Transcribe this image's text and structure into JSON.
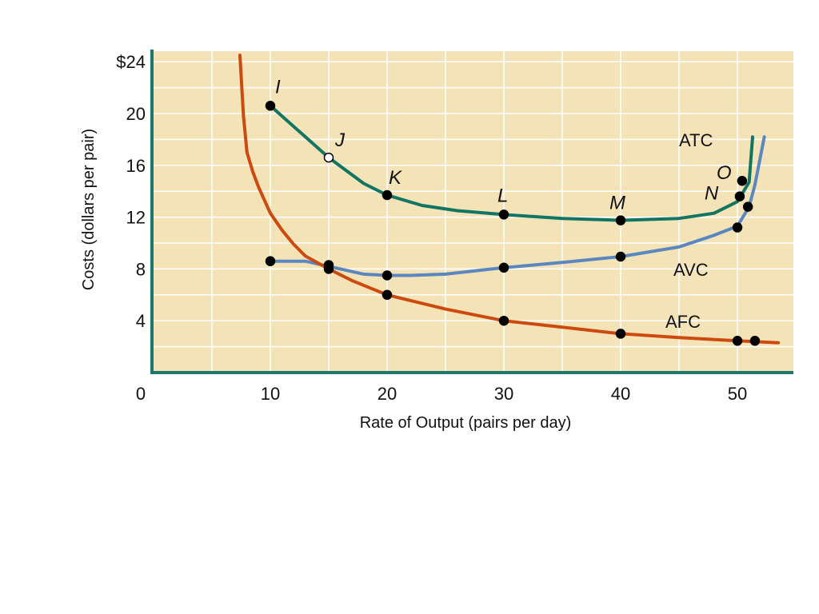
{
  "chart_data": {
    "type": "line",
    "title": "",
    "xlabel": "Rate of Output (pairs per day)",
    "ylabel": "Costs (dollars per pair)",
    "xlim": [
      0,
      55
    ],
    "ylim": [
      0,
      24.5
    ],
    "x_ticks": [
      {
        "value": 0,
        "label": "0"
      },
      {
        "value": 10,
        "label": "10"
      },
      {
        "value": 20,
        "label": "20"
      },
      {
        "value": 30,
        "label": "30"
      },
      {
        "value": 40,
        "label": "40"
      },
      {
        "value": 50,
        "label": "50"
      }
    ],
    "y_ticks": [
      {
        "value": 4,
        "label": "4"
      },
      {
        "value": 8,
        "label": "8"
      },
      {
        "value": 12,
        "label": "12"
      },
      {
        "value": 16,
        "label": "16"
      },
      {
        "value": 20,
        "label": "20"
      },
      {
        "value": 24,
        "label": "$24"
      }
    ],
    "grid": true,
    "background": "#f5e3b8",
    "grid_color": "#ffffff",
    "axis_color": "#1b7a6b",
    "series": [
      {
        "name": "ATC",
        "color": "#117563",
        "line": [
          [
            10,
            20.6
          ],
          [
            12,
            19.0
          ],
          [
            15,
            16.6
          ],
          [
            18,
            14.6
          ],
          [
            20,
            13.7
          ],
          [
            23,
            12.9
          ],
          [
            26,
            12.5
          ],
          [
            30,
            12.2
          ],
          [
            35,
            11.9
          ],
          [
            40,
            11.75
          ],
          [
            45,
            11.9
          ],
          [
            48,
            12.3
          ],
          [
            50,
            13.2
          ],
          [
            51,
            14.7
          ],
          [
            51.3,
            18.2
          ]
        ],
        "points": [
          {
            "x": 10,
            "y": 20.6,
            "label": "I",
            "hollow": false
          },
          {
            "x": 15,
            "y": 16.6,
            "label": "J",
            "hollow": true
          },
          {
            "x": 20,
            "y": 13.7,
            "label": "K",
            "hollow": false
          },
          {
            "x": 30,
            "y": 12.2,
            "label": "L",
            "hollow": false
          },
          {
            "x": 40,
            "y": 11.75,
            "label": "M",
            "hollow": false
          },
          {
            "x": 50.2,
            "y": 13.6,
            "label": "N",
            "hollow": false
          },
          {
            "x": 50.4,
            "y": 14.8,
            "label": "O",
            "hollow": false
          }
        ]
      },
      {
        "name": "AVC",
        "color": "#5b87c0",
        "line": [
          [
            10,
            8.6
          ],
          [
            13,
            8.6
          ],
          [
            15,
            8.2
          ],
          [
            18,
            7.6
          ],
          [
            20,
            7.5
          ],
          [
            22,
            7.5
          ],
          [
            25,
            7.6
          ],
          [
            30,
            8.1
          ],
          [
            35,
            8.5
          ],
          [
            40,
            8.95
          ],
          [
            45,
            9.7
          ],
          [
            48,
            10.6
          ],
          [
            50,
            11.3
          ],
          [
            51,
            12.8
          ],
          [
            51.5,
            14.5
          ],
          [
            52.3,
            18.2
          ]
        ],
        "points": [
          {
            "x": 10,
            "y": 8.6,
            "hollow": false
          },
          {
            "x": 15,
            "y": 8.3,
            "hollow": false
          },
          {
            "x": 20,
            "y": 7.5,
            "hollow": false
          },
          {
            "x": 30,
            "y": 8.1,
            "hollow": false
          },
          {
            "x": 40,
            "y": 8.95,
            "hollow": false
          },
          {
            "x": 50,
            "y": 11.2,
            "hollow": false
          },
          {
            "x": 50.9,
            "y": 12.8,
            "hollow": false
          }
        ]
      },
      {
        "name": "AFC",
        "color": "#cc4a0e",
        "line": [
          [
            7.4,
            24.5
          ],
          [
            7.7,
            19.8
          ],
          [
            8,
            17
          ],
          [
            8.5,
            15.5
          ],
          [
            9,
            14.3
          ],
          [
            10,
            12.3
          ],
          [
            11,
            11.0
          ],
          [
            12,
            9.9
          ],
          [
            13,
            9.0
          ],
          [
            15,
            8.0
          ],
          [
            17,
            7.1
          ],
          [
            20,
            6.0
          ],
          [
            25,
            4.9
          ],
          [
            30,
            4.0
          ],
          [
            35,
            3.5
          ],
          [
            40,
            3.0
          ],
          [
            45,
            2.7
          ],
          [
            50,
            2.45
          ],
          [
            53.5,
            2.3
          ]
        ],
        "points": [
          {
            "x": 15,
            "y": 8.0,
            "hollow": false
          },
          {
            "x": 20,
            "y": 6.0,
            "hollow": false
          },
          {
            "x": 30,
            "y": 4.0,
            "hollow": false
          },
          {
            "x": 40,
            "y": 3.0,
            "hollow": false
          },
          {
            "x": 50,
            "y": 2.45,
            "hollow": false
          },
          {
            "x": 51.5,
            "y": 2.45,
            "hollow": false
          }
        ]
      }
    ]
  }
}
